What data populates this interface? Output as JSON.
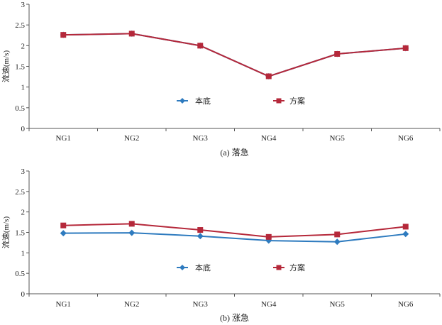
{
  "chart_data": [
    {
      "type": "line",
      "caption": "(a) 落急",
      "ylabel": "流速(m/s)",
      "xlabel": "",
      "categories": [
        "NG1",
        "NG2",
        "NG3",
        "NG4",
        "NG5",
        "NG6"
      ],
      "ylim": [
        0,
        3
      ],
      "yticks": [
        "0",
        "0.5",
        "1",
        "1.5",
        "2",
        "2.5",
        "3"
      ],
      "grid": false,
      "legend": "center",
      "series": [
        {
          "name": "本底",
          "color": "#2e7bbf",
          "marker": "diamond",
          "values": [
            2.26,
            2.29,
            2.0,
            1.26,
            1.8,
            1.94
          ]
        },
        {
          "name": "方案",
          "color": "#b5283a",
          "marker": "square",
          "values": [
            2.26,
            2.29,
            2.0,
            1.26,
            1.8,
            1.94
          ]
        }
      ]
    },
    {
      "type": "line",
      "caption": "(b) 涨急",
      "ylabel": "流速(m/s)",
      "xlabel": "",
      "categories": [
        "NG1",
        "NG2",
        "NG3",
        "NG4",
        "NG5",
        "NG6"
      ],
      "ylim": [
        0,
        3
      ],
      "yticks": [
        "0",
        "0.5",
        "1",
        "1.5",
        "2",
        "2.5",
        "3"
      ],
      "grid": false,
      "legend": "center",
      "series": [
        {
          "name": "本底",
          "color": "#2e7bbf",
          "marker": "diamond",
          "values": [
            1.48,
            1.49,
            1.41,
            1.3,
            1.27,
            1.46
          ]
        },
        {
          "name": "方案",
          "color": "#b5283a",
          "marker": "square",
          "values": [
            1.67,
            1.71,
            1.56,
            1.39,
            1.45,
            1.64
          ]
        }
      ]
    }
  ]
}
